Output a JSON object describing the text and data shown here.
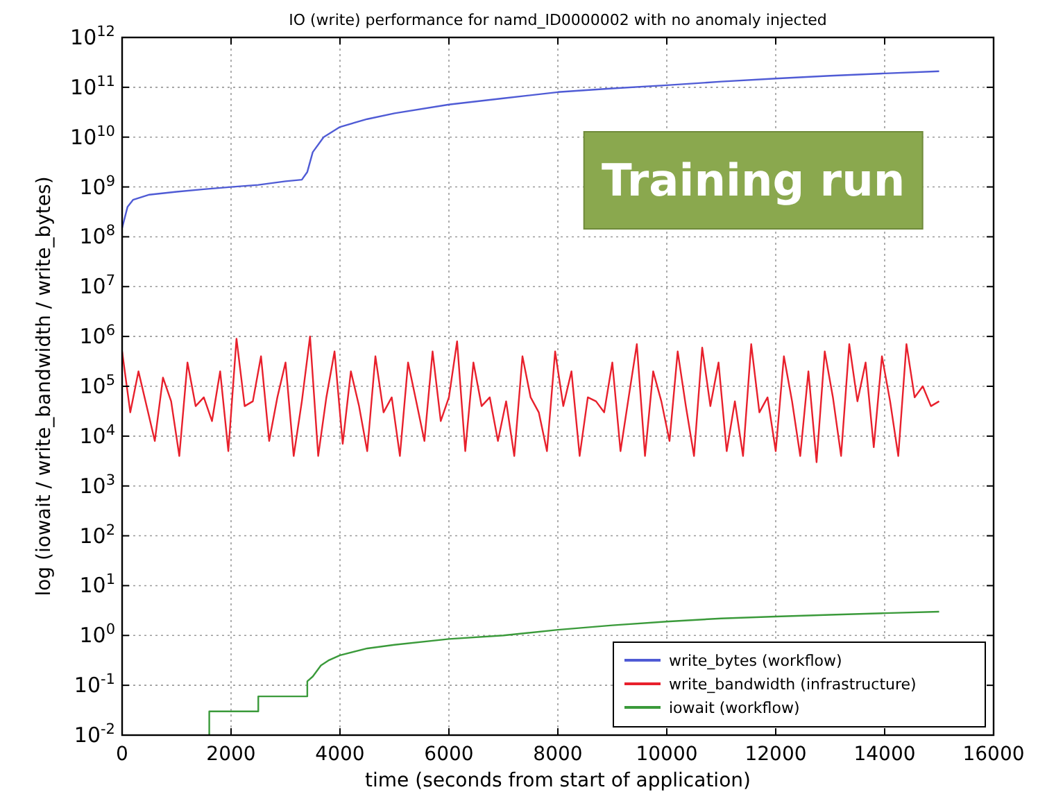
{
  "chart_data": {
    "type": "line",
    "title": "IO (write) performance for namd_ID0000002 with no anomaly injected",
    "xlabel": "time (seconds from start of application)",
    "ylabel": "log (iowait / write_bandwidth / write_bytes)",
    "log": "y",
    "grid": true,
    "legend": "bottom right",
    "line_style": "solid",
    "marker": "none",
    "annotations": [
      "Training run"
    ],
    "xlim": [
      0,
      16000
    ],
    "xticks": [
      0,
      2000,
      4000,
      6000,
      8000,
      10000,
      12000,
      14000,
      16000
    ],
    "ylim": [
      0.01,
      1000000000000
    ],
    "yticks": [
      {
        "value": 0.01,
        "label": "10$^{-2}$"
      },
      {
        "value": 0.1,
        "label": "10$^{-1}$"
      },
      {
        "value": 1,
        "label": "10$^{0}$"
      },
      {
        "value": 10,
        "label": "10$^{1}$"
      },
      {
        "value": 100,
        "label": "10$^{2}$"
      },
      {
        "value": 1000,
        "label": "10$^{3}$"
      },
      {
        "value": 10000,
        "label": "10$^{4}$"
      },
      {
        "value": 100000,
        "label": "10$^{5}$"
      },
      {
        "value": 1000000,
        "label": "10$^{6}$"
      },
      {
        "value": 10000000,
        "label": "10$^{7}$"
      },
      {
        "value": 100000000,
        "label": "10$^{8}$"
      },
      {
        "value": 1000000000,
        "label": "10$^{9}$"
      },
      {
        "value": 10000000000,
        "label": "10$^{10}$"
      },
      {
        "value": 100000000000,
        "label": "10$^{11}$"
      },
      {
        "value": 1000000000000,
        "label": "10$^{12}$"
      }
    ],
    "series": [
      {
        "name": "write_bytes (workflow)",
        "color": "#4f5bd5",
        "x": [
          0,
          100,
          200,
          500,
          1000,
          1500,
          2000,
          2500,
          3000,
          3300,
          3400,
          3500,
          3700,
          4000,
          4500,
          5000,
          6000,
          7000,
          8000,
          9000,
          10000,
          11000,
          12000,
          13000,
          14000,
          15000
        ],
        "values": [
          150000000,
          400000000,
          550000000,
          700000000,
          800000000,
          900000000,
          1000000000,
          1100000000,
          1300000000,
          1400000000,
          2000000000,
          5000000000,
          10000000000,
          16000000000,
          23000000000,
          30000000000,
          45000000000,
          60000000000,
          80000000000,
          95000000000,
          110000000000,
          130000000000,
          150000000000,
          170000000000,
          190000000000,
          210000000000
        ]
      },
      {
        "name": "write_bandwidth (infrastructure)",
        "color": "#e8202c",
        "x": [
          0,
          150,
          300,
          450,
          600,
          750,
          900,
          1050,
          1200,
          1350,
          1500,
          1650,
          1800,
          1950,
          2100,
          2250,
          2400,
          2550,
          2700,
          2850,
          3000,
          3150,
          3300,
          3450,
          3600,
          3750,
          3900,
          4050,
          4200,
          4350,
          4500,
          4650,
          4800,
          4950,
          5100,
          5250,
          5400,
          5550,
          5700,
          5850,
          6000,
          6150,
          6300,
          6450,
          6600,
          6750,
          6900,
          7050,
          7200,
          7350,
          7500,
          7650,
          7800,
          7950,
          8100,
          8250,
          8400,
          8550,
          8700,
          8850,
          9000,
          9150,
          9300,
          9450,
          9600,
          9750,
          9900,
          10050,
          10200,
          10350,
          10500,
          10650,
          10800,
          10950,
          11100,
          11250,
          11400,
          11550,
          11700,
          11850,
          12000,
          12150,
          12300,
          12450,
          12600,
          12750,
          12900,
          13050,
          13200,
          13350,
          13500,
          13650,
          13800,
          13950,
          14100,
          14250,
          14400,
          14550,
          14700,
          14850,
          15000
        ],
        "values": [
          500000,
          30000,
          200000,
          40000,
          8000,
          150000,
          50000,
          4000,
          300000,
          40000,
          60000,
          20000,
          200000,
          5000,
          900000,
          40000,
          50000,
          400000,
          8000,
          60000,
          300000,
          4000,
          50000,
          1000000,
          4000,
          60000,
          500000,
          7000,
          200000,
          40000,
          5000,
          400000,
          30000,
          60000,
          4000,
          300000,
          50000,
          8000,
          500000,
          20000,
          60000,
          800000,
          5000,
          300000,
          40000,
          60000,
          8000,
          50000,
          4000,
          400000,
          60000,
          30000,
          5000,
          500000,
          40000,
          200000,
          4000,
          60000,
          50000,
          30000,
          300000,
          5000,
          60000,
          700000,
          4000,
          200000,
          50000,
          8000,
          500000,
          40000,
          4000,
          600000,
          40000,
          300000,
          5000,
          50000,
          4000,
          700000,
          30000,
          60000,
          5000,
          400000,
          50000,
          4000,
          200000,
          3000,
          500000,
          60000,
          4000,
          700000,
          50000,
          300000,
          6000,
          400000,
          50000,
          4000,
          700000,
          60000,
          100000,
          40000,
          50000
        ]
      },
      {
        "name": "iowait (workflow)",
        "color": "#3a9a3a",
        "x": [
          1600,
          1600,
          2500,
          2500,
          3400,
          3400,
          3500,
          3650,
          3800,
          4000,
          4500,
          5000,
          6000,
          7000,
          8000,
          9000,
          10000,
          11000,
          12000,
          13000,
          14000,
          15000
        ],
        "values": [
          0.01,
          0.03,
          0.03,
          0.06,
          0.06,
          0.12,
          0.15,
          0.25,
          0.32,
          0.4,
          0.55,
          0.65,
          0.85,
          1.0,
          1.3,
          1.6,
          1.9,
          2.2,
          2.4,
          2.6,
          2.8,
          3.0
        ]
      }
    ]
  }
}
